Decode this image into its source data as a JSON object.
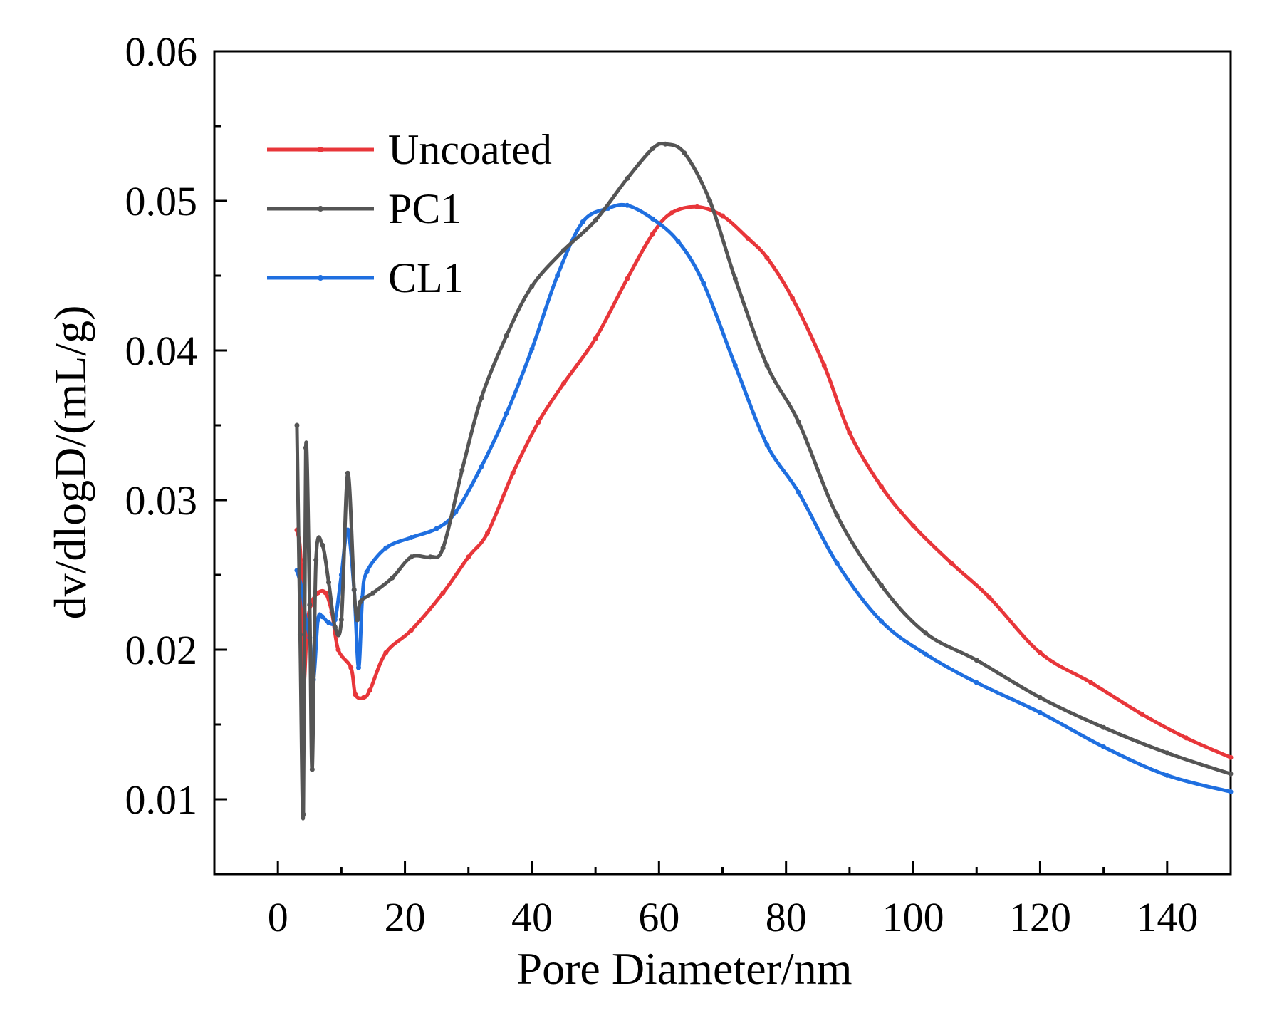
{
  "chart_data": {
    "type": "line",
    "title": "",
    "xlabel": "Pore Diameter/nm",
    "ylabel": "dv/dlogD/(mL/g)",
    "xlim": [
      -10,
      150
    ],
    "ylim": [
      0.005,
      0.06
    ],
    "xticks": [
      0,
      20,
      40,
      60,
      80,
      100,
      120,
      140
    ],
    "yticks": [
      0.01,
      0.02,
      0.03,
      0.04,
      0.05,
      0.06
    ],
    "xtick_labels": [
      "0",
      "20",
      "40",
      "60",
      "80",
      "100",
      "120",
      "140"
    ],
    "ytick_labels": [
      "0.01",
      "0.02",
      "0.03",
      "0.04",
      "0.05",
      "0.06"
    ],
    "grid": false,
    "legend_position": "top-left",
    "series": [
      {
        "name": "Uncoated",
        "color": "#e8363a",
        "points": [
          [
            3.0,
            0.028
          ],
          [
            3.6,
            0.026
          ],
          [
            4.0,
            0.0175
          ],
          [
            4.6,
            0.0215
          ],
          [
            5.2,
            0.023
          ],
          [
            6.3,
            0.0238
          ],
          [
            7.5,
            0.0238
          ],
          [
            8.5,
            0.0225
          ],
          [
            9.5,
            0.02
          ],
          [
            11.5,
            0.0188
          ],
          [
            12.2,
            0.017
          ],
          [
            13.5,
            0.0168
          ],
          [
            14.5,
            0.0173
          ],
          [
            17.0,
            0.0198
          ],
          [
            21.0,
            0.0213
          ],
          [
            26.0,
            0.0238
          ],
          [
            30.0,
            0.0262
          ],
          [
            33.0,
            0.0278
          ],
          [
            37.0,
            0.0318
          ],
          [
            41.0,
            0.0352
          ],
          [
            45.0,
            0.0378
          ],
          [
            50.0,
            0.0408
          ],
          [
            55.0,
            0.0448
          ],
          [
            59.0,
            0.0478
          ],
          [
            62.0,
            0.0492
          ],
          [
            66.0,
            0.0496
          ],
          [
            70.0,
            0.049
          ],
          [
            74.0,
            0.0475
          ],
          [
            77.0,
            0.0462
          ],
          [
            81.0,
            0.0435
          ],
          [
            86.0,
            0.039
          ],
          [
            90.0,
            0.0345
          ],
          [
            95.0,
            0.0309
          ],
          [
            100.0,
            0.0283
          ],
          [
            106.0,
            0.0258
          ],
          [
            112.0,
            0.0235
          ],
          [
            120.0,
            0.0198
          ],
          [
            128.0,
            0.0178
          ],
          [
            136.0,
            0.0157
          ],
          [
            143.0,
            0.0141
          ],
          [
            150.0,
            0.0128
          ]
        ]
      },
      {
        "name": "PC1",
        "color": "#555555",
        "points": [
          [
            3.0,
            0.035
          ],
          [
            3.5,
            0.021
          ],
          [
            4.0,
            0.009
          ],
          [
            4.4,
            0.0335
          ],
          [
            5.0,
            0.023
          ],
          [
            5.4,
            0.012
          ],
          [
            6.0,
            0.026
          ],
          [
            7.0,
            0.027
          ],
          [
            8.0,
            0.0245
          ],
          [
            9.0,
            0.0215
          ],
          [
            10.0,
            0.022
          ],
          [
            11.0,
            0.0318
          ],
          [
            12.0,
            0.024
          ],
          [
            12.5,
            0.022
          ],
          [
            13.0,
            0.0232
          ],
          [
            15.0,
            0.0238
          ],
          [
            18.0,
            0.0248
          ],
          [
            21.0,
            0.0262
          ],
          [
            24.0,
            0.0262
          ],
          [
            26.0,
            0.0268
          ],
          [
            29.0,
            0.032
          ],
          [
            32.0,
            0.0368
          ],
          [
            36.0,
            0.041
          ],
          [
            40.0,
            0.0443
          ],
          [
            45.0,
            0.0467
          ],
          [
            50.0,
            0.0487
          ],
          [
            55.0,
            0.0515
          ],
          [
            59.0,
            0.0535
          ],
          [
            61.0,
            0.0538
          ],
          [
            64.0,
            0.0532
          ],
          [
            68.0,
            0.05
          ],
          [
            72.0,
            0.0448
          ],
          [
            77.0,
            0.039
          ],
          [
            82.0,
            0.0352
          ],
          [
            88.0,
            0.029
          ],
          [
            95.0,
            0.0243
          ],
          [
            102.0,
            0.0211
          ],
          [
            110.0,
            0.0193
          ],
          [
            120.0,
            0.0168
          ],
          [
            130.0,
            0.0148
          ],
          [
            140.0,
            0.0131
          ],
          [
            150.0,
            0.0117
          ]
        ]
      },
      {
        "name": "CL1",
        "color": "#1f6fe0",
        "points": [
          [
            3.0,
            0.0253
          ],
          [
            3.8,
            0.024
          ],
          [
            4.4,
            0.022
          ],
          [
            5.0,
            0.0208
          ],
          [
            5.6,
            0.018
          ],
          [
            6.3,
            0.022
          ],
          [
            7.0,
            0.0222
          ],
          [
            8.0,
            0.0218
          ],
          [
            9.0,
            0.022
          ],
          [
            10.0,
            0.025
          ],
          [
            11.0,
            0.028
          ],
          [
            12.0,
            0.024
          ],
          [
            12.7,
            0.0188
          ],
          [
            13.3,
            0.0235
          ],
          [
            14.0,
            0.0252
          ],
          [
            17.0,
            0.0268
          ],
          [
            21.0,
            0.0275
          ],
          [
            25.0,
            0.0281
          ],
          [
            28.0,
            0.0292
          ],
          [
            32.0,
            0.0322
          ],
          [
            36.0,
            0.0358
          ],
          [
            40.0,
            0.0401
          ],
          [
            44.0,
            0.045
          ],
          [
            48.0,
            0.0486
          ],
          [
            52.0,
            0.0495
          ],
          [
            55.0,
            0.0497
          ],
          [
            59.0,
            0.0488
          ],
          [
            63.0,
            0.0473
          ],
          [
            67.0,
            0.0445
          ],
          [
            72.0,
            0.039
          ],
          [
            77.0,
            0.0337
          ],
          [
            82.0,
            0.0305
          ],
          [
            88.0,
            0.0258
          ],
          [
            95.0,
            0.0219
          ],
          [
            102.0,
            0.0197
          ],
          [
            110.0,
            0.0178
          ],
          [
            120.0,
            0.0158
          ],
          [
            130.0,
            0.0135
          ],
          [
            140.0,
            0.0116
          ],
          [
            150.0,
            0.0105
          ]
        ]
      }
    ]
  }
}
